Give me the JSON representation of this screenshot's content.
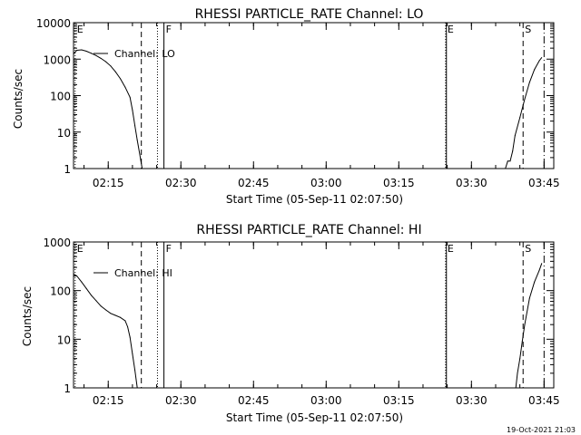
{
  "footer": {
    "timestamp": "19-Oct-2021 21:03"
  },
  "chart_data": [
    {
      "type": "line",
      "title": "RHESSI PARTICLE_RATE Channel: LO",
      "xlabel": "Start Time (05-Sep-11 02:07:50)",
      "ylabel": "Counts/sec",
      "yscale": "log",
      "ylim": [
        1,
        10000
      ],
      "xlim": [
        "02:07:50",
        "03:47:00"
      ],
      "xticks": [
        "02:15",
        "02:30",
        "02:45",
        "03:00",
        "03:15",
        "03:30",
        "03:45"
      ],
      "yticks": [
        "1",
        "10",
        "100",
        "1000",
        "10000"
      ],
      "legend": {
        "position": "top-left",
        "entries": [
          "Channel: LO"
        ]
      },
      "series": [
        {
          "name": "Channel: LO",
          "segments": [
            [
              [
                "02:07:50",
                1400
              ],
              [
                "02:08:30",
                1750
              ],
              [
                "02:09:30",
                1800
              ],
              [
                "02:10:30",
                1650
              ],
              [
                "02:11:30",
                1450
              ],
              [
                "02:12:30",
                1250
              ],
              [
                "02:13:30",
                1050
              ],
              [
                "02:14:30",
                850
              ],
              [
                "02:15:30",
                650
              ],
              [
                "02:16:30",
                450
              ],
              [
                "02:17:30",
                290
              ],
              [
                "02:18:30",
                170
              ],
              [
                "02:19:30",
                90
              ],
              [
                "02:20:00",
                40
              ],
              [
                "02:20:30",
                15
              ],
              [
                "02:21:00",
                6
              ],
              [
                "02:21:30",
                2.5
              ],
              [
                "02:22:00",
                1
              ]
            ],
            [
              [
                "03:37:00",
                1
              ],
              [
                "03:37:30",
                1.6
              ],
              [
                "03:38:00",
                1.6
              ],
              [
                "03:38:30",
                3
              ],
              [
                "03:39:00",
                8
              ],
              [
                "03:40:00",
                25
              ],
              [
                "03:41:00",
                80
              ],
              [
                "03:42:00",
                230
              ],
              [
                "03:43:00",
                520
              ],
              [
                "03:44:00",
                900
              ],
              [
                "03:44:30",
                1100
              ]
            ]
          ]
        }
      ],
      "markers": [
        {
          "label": "E",
          "time": "02:08:10",
          "style": "dotted"
        },
        {
          "label": "",
          "time": "02:21:50",
          "style": "dashed"
        },
        {
          "label": "",
          "time": "02:25:10",
          "style": "dotted"
        },
        {
          "label": "F",
          "time": "02:26:30",
          "style": "solid"
        },
        {
          "label": "E",
          "time": "03:24:40",
          "style": "dotted"
        },
        {
          "label": "",
          "time": "03:24:50",
          "style": "solid"
        },
        {
          "label": "S",
          "time": "03:40:40",
          "style": "dashed"
        },
        {
          "label": "",
          "time": "03:45:00",
          "style": "dashdot"
        }
      ]
    },
    {
      "type": "line",
      "title": "RHESSI PARTICLE_RATE Channel: HI",
      "xlabel": "Start Time (05-Sep-11 02:07:50)",
      "ylabel": "Counts/sec",
      "yscale": "log",
      "ylim": [
        1,
        1000
      ],
      "xlim": [
        "02:07:50",
        "03:47:00"
      ],
      "xticks": [
        "02:15",
        "02:30",
        "02:45",
        "03:00",
        "03:15",
        "03:30",
        "03:45"
      ],
      "yticks": [
        "1",
        "10",
        "100",
        "1000"
      ],
      "legend": {
        "position": "top-left",
        "entries": [
          "Channel: HI"
        ]
      },
      "series": [
        {
          "name": "Channel: HI",
          "segments": [
            [
              [
                "02:07:50",
                220
              ],
              [
                "02:08:30",
                200
              ],
              [
                "02:09:30",
                150
              ],
              [
                "02:10:30",
                110
              ],
              [
                "02:11:30",
                80
              ],
              [
                "02:12:30",
                62
              ],
              [
                "02:13:30",
                48
              ],
              [
                "02:14:30",
                40
              ],
              [
                "02:15:30",
                34
              ],
              [
                "02:16:30",
                31
              ],
              [
                "02:17:30",
                28
              ],
              [
                "02:18:30",
                24
              ],
              [
                "02:19:00",
                18
              ],
              [
                "02:19:30",
                11
              ],
              [
                "02:20:00",
                5
              ],
              [
                "02:20:30",
                2.3
              ],
              [
                "02:21:00",
                1
              ]
            ],
            [
              [
                "03:39:10",
                1
              ],
              [
                "03:39:30",
                2
              ],
              [
                "03:40:00",
                4
              ],
              [
                "03:40:30",
                9
              ],
              [
                "03:41:00",
                20
              ],
              [
                "03:42:00",
                70
              ],
              [
                "03:43:00",
                150
              ],
              [
                "03:44:00",
                260
              ],
              [
                "03:44:30",
                360
              ]
            ]
          ]
        }
      ],
      "markers": [
        {
          "label": "E",
          "time": "02:08:10",
          "style": "dotted"
        },
        {
          "label": "",
          "time": "02:21:50",
          "style": "dashed"
        },
        {
          "label": "",
          "time": "02:25:10",
          "style": "dotted"
        },
        {
          "label": "F",
          "time": "02:26:30",
          "style": "solid"
        },
        {
          "label": "E",
          "time": "03:24:40",
          "style": "dotted"
        },
        {
          "label": "",
          "time": "03:24:50",
          "style": "solid"
        },
        {
          "label": "S",
          "time": "03:40:40",
          "style": "dashed"
        },
        {
          "label": "",
          "time": "03:45:00",
          "style": "dashdot"
        }
      ]
    }
  ]
}
